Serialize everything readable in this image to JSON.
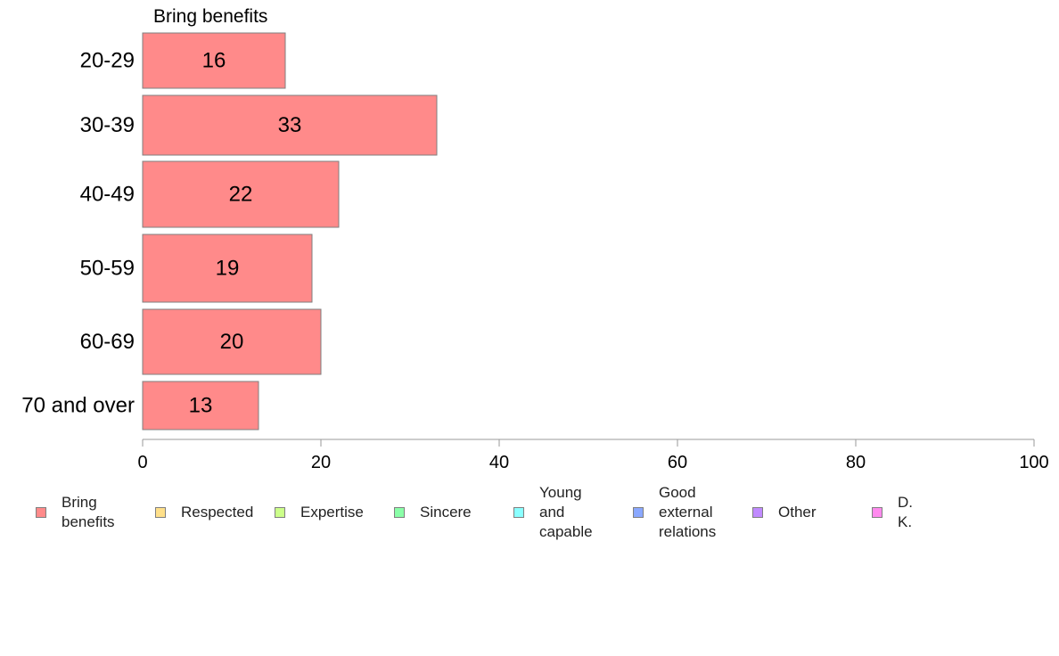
{
  "chart_data": {
    "type": "bar",
    "orientation": "horizontal",
    "title": "",
    "series_label": "Bring benefits",
    "categories": [
      "20-29",
      "30-39",
      "40-49",
      "50-59",
      "60-69",
      "70 and over"
    ],
    "series": [
      {
        "name": "Bring benefits",
        "color": "#ff8a8a",
        "values": [
          16,
          33,
          22,
          19,
          20,
          13
        ],
        "labels": [
          "16",
          "33",
          "22",
          "19",
          "20",
          "13"
        ]
      }
    ],
    "xlim": [
      0,
      100
    ],
    "xticks": [
      "0",
      "20",
      "40",
      "60",
      "80",
      "100"
    ],
    "grid": false,
    "legend_position": "bottom",
    "legend": [
      {
        "lines": [
          "Bring",
          "benefits"
        ],
        "color": "#ff8a8a"
      },
      {
        "lines": [
          "Respected"
        ],
        "color": "#ffe08a"
      },
      {
        "lines": [
          "Expertise"
        ],
        "color": "#ccff8a"
      },
      {
        "lines": [
          "Sincere"
        ],
        "color": "#8affa8"
      },
      {
        "lines": [
          "Young and",
          "capable"
        ],
        "color": "#8affff"
      },
      {
        "lines": [
          "Good",
          "external",
          "relations"
        ],
        "color": "#8aa8ff"
      },
      {
        "lines": [
          "Other"
        ],
        "color": "#c08aff"
      },
      {
        "lines": [
          "D. K."
        ],
        "color": "#ff8aee"
      }
    ]
  }
}
